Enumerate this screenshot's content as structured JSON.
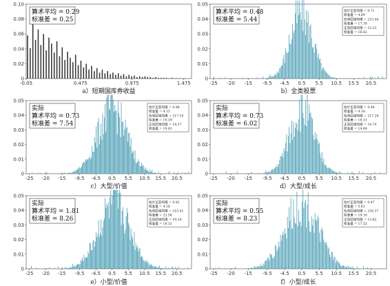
{
  "chart_data": [
    {
      "id": "a",
      "type": "bar",
      "caption": "a）短期国库券收益",
      "xticks": [
        "-0.05",
        "0.475",
        "0.975",
        "1.475"
      ],
      "xlim": [
        -0.05,
        1.55
      ],
      "yticks": [
        "0",
        "0.02",
        "0.04",
        "0.06",
        "0.08",
        "0.10"
      ],
      "ylim": [
        0,
        0.1
      ],
      "color": "#333333",
      "mean": 0.29,
      "sd": 0.25,
      "stats_main": [
        "算术平均 = 0.29",
        "标准差 = 0.25"
      ],
      "stats_small": [],
      "values": [
        0.058,
        0.041,
        0.078,
        0.052,
        0.066,
        0.045,
        0.06,
        0.038,
        0.055,
        0.047,
        0.035,
        0.05,
        0.03,
        0.042,
        0.025,
        0.036,
        0.028,
        0.022,
        0.032,
        0.018,
        0.024,
        0.015,
        0.02,
        0.012,
        0.017,
        0.01,
        0.014,
        0.008,
        0.012,
        0.007,
        0.01,
        0.006,
        0.008,
        0.005,
        0.007,
        0.004,
        0.006,
        0.003,
        0.005,
        0.003,
        0.004,
        0.002,
        0.003,
        0.002,
        0.003,
        0.002,
        0.002,
        0.001,
        0.002,
        0.001,
        0.001,
        0.001,
        0.001,
        0.0005,
        0.001,
        0.0005,
        0.0005,
        0.0005,
        0.0005,
        0.0005
      ]
    },
    {
      "id": "b",
      "type": "bar",
      "caption": "b）全类股票",
      "xticks": [
        "-25",
        "-20",
        "-15",
        "-9.5",
        "-4.5",
        "0.5",
        "5.5",
        "10.5",
        "15.5",
        "20.5"
      ],
      "xlim": [
        -26,
        25
      ],
      "yticks": [
        "0",
        "0.01",
        "0.02",
        "0.03",
        "0.04",
        "0.05"
      ],
      "ylim": [
        0,
        0.05
      ],
      "color": "#4a9db4",
      "mean": 0.48,
      "sd": 5.44,
      "stats_main": [
        "算术平均 = 0.48",
        "标准差 = 5.44"
      ],
      "stats_small": [
        "估计正态均值 = 0.71",
        "标准差 = 4.69",
        "负向区域均值 = 215.44",
        "标准差 = 17.18",
        "正向区域均值 = 15.23",
        "标准差 = 16.62"
      ]
    },
    {
      "id": "c",
      "type": "bar",
      "caption": "c）大型/价值",
      "xticks": [
        "-25",
        "-20",
        "-15",
        "-9.5",
        "-4.5",
        "0.5",
        "5.5",
        "10.5",
        "15.5",
        "20.5"
      ],
      "xlim": [
        -26,
        25
      ],
      "yticks": [
        "0",
        "0.01",
        "0.02",
        "0.03",
        "0.04",
        "0.05"
      ],
      "ylim": [
        0,
        0.05
      ],
      "color": "#4a9db4",
      "mean": 0.73,
      "sd": 7.54,
      "stats_main": [
        "实际",
        "算术平均 = 0.73",
        "标准差 = 7.54"
      ],
      "stats_small": [
        "估计正态均值 = 0.86",
        "标准差 = 4.15",
        "负向区域均值 = 217.35",
        "标准差 = 19.39",
        "正向区域均值 = 14.37",
        "标准差 = 19.63"
      ]
    },
    {
      "id": "d",
      "type": "bar",
      "caption": "d）大型/成长",
      "xticks": [
        "-25",
        "-20",
        "-15",
        "-9.5",
        "-4.5",
        "0.5",
        "5.5",
        "10.5",
        "15.5",
        "20.5"
      ],
      "xlim": [
        -26,
        25
      ],
      "yticks": [
        "0",
        "0.01",
        "0.02",
        "0.03",
        "0.04",
        "0.05"
      ],
      "ylim": [
        0,
        0.05
      ],
      "color": "#4a9db4",
      "mean": 0.73,
      "sd": 6.02,
      "stats_main": [
        "实际",
        "算术平均 = 0.73",
        "标准差 = 6.02"
      ],
      "stats_small": [
        "估计正态均值 = 0.40",
        "标准差 = 4.18",
        "负向区域均值 = 217.28",
        "标准差 = 18.31",
        "正向区域均值 = 14.74",
        "标准差 = 14.89"
      ]
    },
    {
      "id": "e",
      "type": "bar",
      "caption": "e）小型/价值",
      "xticks": [
        "-25",
        "-20",
        "-15",
        "-9.5",
        "-4.5",
        "0.5",
        "5.5",
        "10.5",
        "15.5",
        "20.5"
      ],
      "xlim": [
        -26,
        25
      ],
      "yticks": [
        "0",
        "0.01",
        "0.02",
        "0.03",
        "0.04",
        "0.05"
      ],
      "ylim": [
        0,
        0.05
      ],
      "color": "#4a9db4",
      "mean": 1.81,
      "sd": 8.26,
      "stats_main": [
        "实际",
        "算术平均 = 1.81",
        "标准差 = 8.26"
      ],
      "stats_small": [
        "估计正态均值 = 0.92",
        "标准差 = 4.38",
        "负向区域均值 = 215.41",
        "标准差 = 22.58",
        "正向区域均值 = 19.24",
        "标准差 = 18.32"
      ]
    },
    {
      "id": "f",
      "type": "bar",
      "caption": "f）小型/成长",
      "xticks": [
        "-25",
        "-20",
        "-15",
        "-9.5",
        "-4.5",
        "0.5",
        "5.5",
        "10.5",
        "15.5",
        "20.5"
      ],
      "xlim": [
        -26,
        25
      ],
      "yticks": [
        "0",
        "0.01",
        "0.02",
        "0.03",
        "0.04",
        "0.05"
      ],
      "ylim": [
        0,
        0.05
      ],
      "color": "#4a9db4",
      "mean": 0.55,
      "sd": 8.23,
      "stats_main": [
        "实际",
        "算术平均 = 0.55",
        "标准差 = 8.23"
      ],
      "stats_small": [
        "估计正态均值 = 0.47",
        "标准差 = 5.61",
        "负向区域均值 = 216.37",
        "标准差 = 19.18",
        "正向区域均值 = 13.62",
        "标准差 = 17.52"
      ]
    }
  ]
}
